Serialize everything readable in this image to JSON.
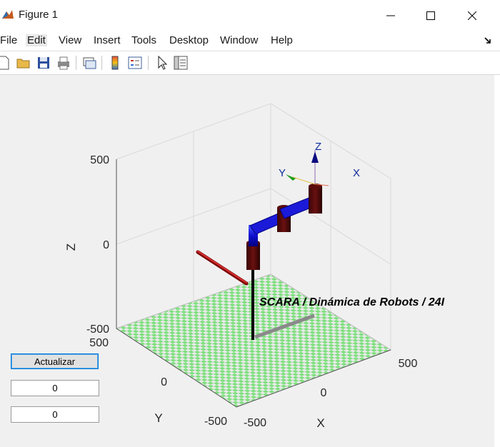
{
  "window": {
    "title": "Figure 1",
    "controls": [
      "minimize",
      "maximize",
      "close"
    ]
  },
  "menu": [
    "File",
    "Edit",
    "View",
    "Insert",
    "Tools",
    "Desktop",
    "Window",
    "Help"
  ],
  "toolbar": [
    "new-figure-icon",
    "open-file-icon",
    "save-icon",
    "print-icon",
    "link-plot-icon",
    "colorbar-icon",
    "legend-icon",
    "pointer-icon",
    "property-inspector-icon"
  ],
  "axes": {
    "z_label": "Z",
    "y_label": "Y",
    "x_label": "X",
    "z_ticks": [
      "500",
      "0",
      "-500"
    ],
    "y_ticks": [
      "500",
      "0",
      "-500"
    ],
    "x_ticks": [
      "-500",
      "0",
      "500"
    ]
  },
  "robot": {
    "annotation": "SCARA / Dinámica de Robots / 24I",
    "frame_labels": {
      "z": "Z",
      "y": "Y",
      "x": "X"
    }
  },
  "controls": {
    "update_button": "Actualizar",
    "field1": "0",
    "field2": "0"
  }
}
